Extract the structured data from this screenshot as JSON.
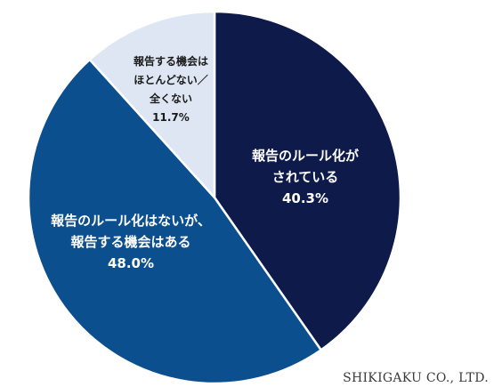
{
  "chart_data": {
    "type": "pie",
    "slices": [
      {
        "label_lines": [
          "報告のルール化が",
          "されている"
        ],
        "value": 40.3,
        "value_label": "40.3%",
        "color": "#0d1a4a",
        "text_color": "#ffffff"
      },
      {
        "label_lines": [
          "報告のルール化はないが、",
          "報告する機会はある"
        ],
        "value": 48.0,
        "value_label": "48.0%",
        "color": "#0b4f8f",
        "text_color": "#ffffff"
      },
      {
        "label_lines": [
          "報告する機会は",
          "ほとんどない／",
          "全くない"
        ],
        "value": 11.7,
        "value_label": "11.7%",
        "color": "#dde6f2",
        "text_color": "#1a1a1a"
      }
    ],
    "start": "12 o'clock",
    "direction": "clockwise",
    "slice_border_color": "#ffffff"
  },
  "footer": {
    "credit": "SHIKIGAKU CO., LTD."
  }
}
